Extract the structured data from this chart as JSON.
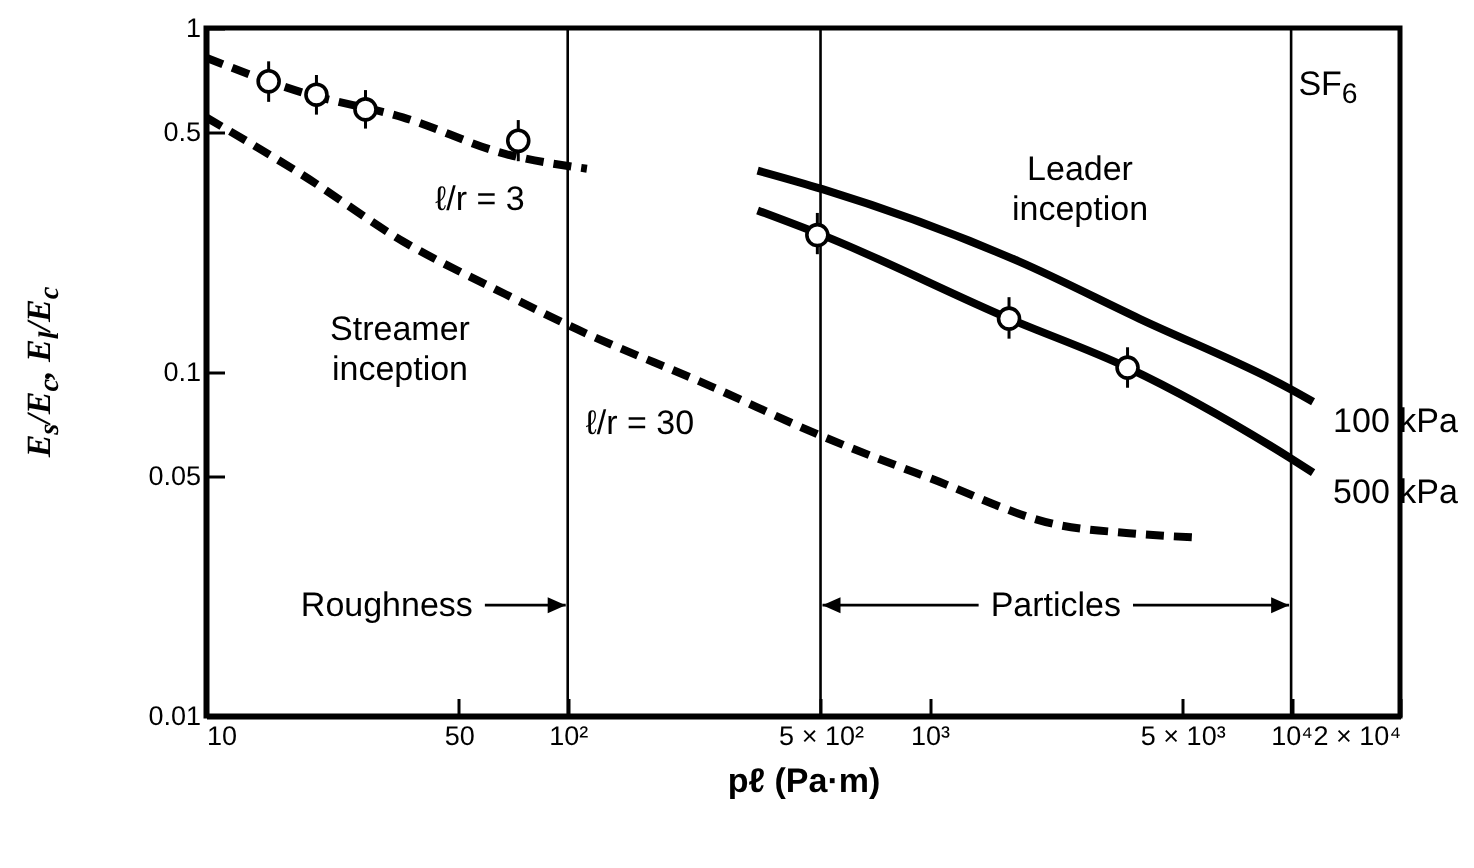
{
  "chart_data": {
    "type": "line",
    "xlabel": "pℓ (Pa·m)",
    "ylabel": "E$_{s}$/E$_{c}$, E$_{l}$/E$_{c}$",
    "log": "xy",
    "xlim": [
      10,
      20000
    ],
    "ylim": [
      0.01,
      1
    ],
    "xticks": [
      10,
      50,
      {
        "value": 100,
        "label": "10²"
      },
      {
        "value": 500,
        "label": "5 × 10²"
      },
      {
        "value": 1000,
        "label": "10³"
      },
      {
        "value": 5000,
        "label": "5 × 10³"
      },
      {
        "value": 10000,
        "label": "10⁴"
      },
      {
        "value": 20000,
        "label": "2 × 10⁴"
      }
    ],
    "yticks": [
      0.01,
      0.05,
      0.1,
      0.5,
      1
    ],
    "grid": false,
    "series": [
      {
        "color": "#000000",
        "line_style": "dashed",
        "x": [
          10,
          18.4,
          35,
          67.5,
          113
        ],
        "values": [
          0.82,
          0.65,
          0.55,
          0.43,
          0.39
        ]
      },
      {
        "color": "#000000",
        "line_style": "dashed",
        "x": [
          10,
          18.4,
          35,
          67.5,
          100,
          248,
          506,
          1010,
          2250,
          3560,
          5500
        ],
        "values": [
          0.55,
          0.375,
          0.24,
          0.168,
          0.137,
          0.091,
          0.065,
          0.049,
          0.036,
          0.034,
          0.033
        ]
      },
      {
        "name": "100 kPa",
        "color": "#000000",
        "line_style": "solid",
        "x": [
          335,
          506,
          1760,
          3800,
          10000,
          11500
        ],
        "values": [
          0.385,
          0.34,
          0.21,
          0.143,
          0.089,
          0.082
        ]
      },
      {
        "name": "500 kPa",
        "color": "#000000",
        "line_style": "solid",
        "x": [
          335,
          506,
          1660,
          3530,
          10000,
          11500
        ],
        "values": [
          0.295,
          0.25,
          0.143,
          0.103,
          0.056,
          0.051
        ]
      },
      {
        "type": "scatter",
        "color": "#000000",
        "marker": "circle",
        "x": [
          14.9,
          20.2,
          27.6,
          73
        ],
        "values": [
          0.7,
          0.64,
          0.58,
          0.47
        ],
        "errors": [
          [
            0.61,
            0.8
          ],
          [
            0.56,
            0.73
          ],
          [
            0.51,
            0.66
          ],
          [
            0.41,
            0.54
          ]
        ]
      },
      {
        "type": "scatter",
        "color": "#000000",
        "marker": "circle",
        "x": [
          490,
          1660,
          3530
        ],
        "values": [
          0.25,
          0.143,
          0.103
        ],
        "errors": [
          [
            0.22,
            0.29
          ],
          [
            0.125,
            0.165
          ],
          [
            0.09,
            0.118
          ]
        ]
      }
    ],
    "ref_lines": [
      {
        "axis": "x",
        "value": 100,
        "color": "#000000"
      },
      {
        "axis": "x",
        "value": 500,
        "color": "#000000"
      },
      {
        "axis": "x",
        "value": 10000,
        "color": "#000000"
      }
    ],
    "annotations": [
      "ℓ/r = 3",
      "Streamer\ninception",
      "ℓ/r = 30",
      "Leader\ninception",
      "SF$_{6}$",
      {
        "text": "Roughness",
        "x": 100,
        "y": 0.021
      },
      {
        "text": "Particles",
        "x": 10000,
        "y": 0.021
      }
    ]
  }
}
